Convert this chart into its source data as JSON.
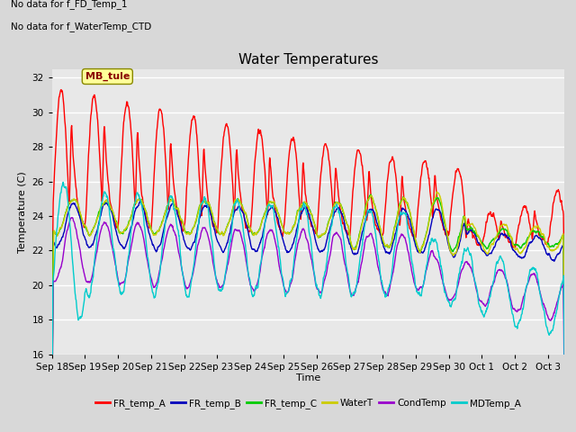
{
  "title": "Water Temperatures",
  "xlabel": "Time",
  "ylabel": "Temperature (C)",
  "ylim": [
    16,
    32.5
  ],
  "yticks": [
    16,
    18,
    20,
    22,
    24,
    26,
    28,
    30,
    32
  ],
  "annotation_lines": [
    "No data for f_FD_Temp_1",
    "No data for f_WaterTemp_CTD"
  ],
  "mb_tule_label": "MB_tule",
  "legend_entries": [
    "FR_temp_A",
    "FR_temp_B",
    "FR_temp_C",
    "WaterT",
    "CondTemp",
    "MDTemp_A"
  ],
  "legend_colors": [
    "#ff0000",
    "#0000bb",
    "#00cc00",
    "#cccc00",
    "#9900cc",
    "#00cccc"
  ],
  "bg_color": "#d8d8d8",
  "plot_bg_color": "#e8e8e8",
  "x_tick_labels": [
    "Sep 18",
    "Sep 19",
    "Sep 20",
    "Sep 21",
    "Sep 22",
    "Sep 23",
    "Sep 24",
    "Sep 25",
    "Sep 26",
    "Sep 27",
    "Sep 28",
    "Sep 29",
    "Sep 30",
    "Oct 1",
    "Oct 2",
    "Oct 3"
  ],
  "n_days": 15.5
}
